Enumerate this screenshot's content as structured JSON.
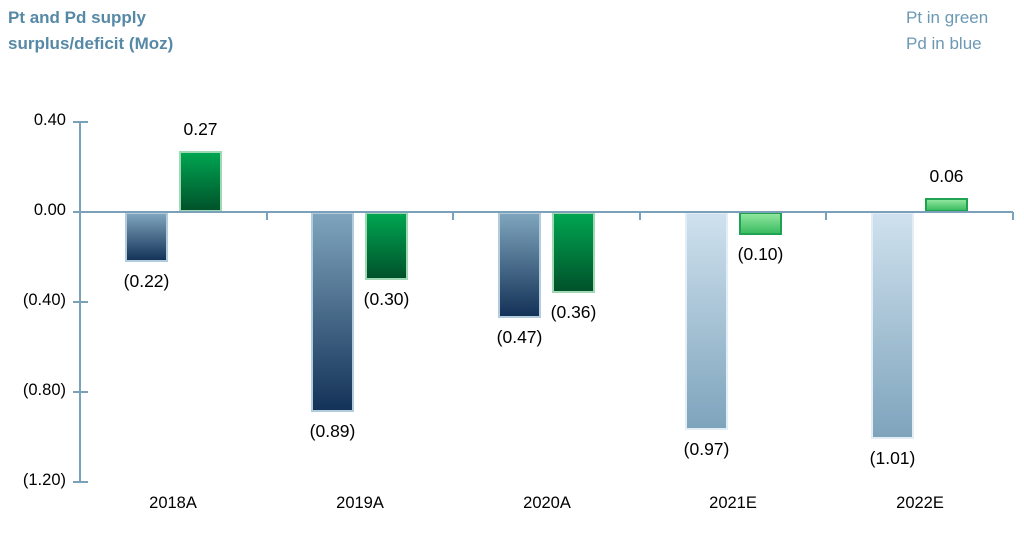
{
  "title": {
    "line1": "Pt and Pd supply",
    "line2": "surplus/deficit (Moz)"
  },
  "legend": {
    "pt": "Pt in green",
    "pd": "Pd in blue"
  },
  "colors": {
    "title_text": "#5689a6",
    "legend_text": "#6c98b4",
    "axis_line": "#7aa0ba",
    "label_text": "#000000",
    "blue_actual": {
      "top": "#7fa5bd",
      "bottom": "#143258",
      "border": "#b3ccdd"
    },
    "green_actual": {
      "top": "#00a551",
      "bottom": "#00522a",
      "border": "#9ed9b4"
    },
    "blue_forecast": {
      "top": "#cfe1ee",
      "bottom": "#7ea4bc",
      "border": "#e3edf5"
    },
    "green_forecast": {
      "top": "#90e59d",
      "bottom": "#3cbd63",
      "border": "#1fa350"
    }
  },
  "chart_data": {
    "type": "bar",
    "title": "Pt and Pd supply surplus/deficit (Moz)",
    "unit": "Moz",
    "categories": [
      "2018A",
      "2019A",
      "2020A",
      "2021E",
      "2022E"
    ],
    "forecast": [
      false,
      false,
      false,
      true,
      true
    ],
    "series": [
      {
        "name": "Pd",
        "theme": "blue",
        "values": [
          -0.22,
          -0.89,
          -0.47,
          -0.97,
          -1.01
        ],
        "labels": [
          "(0.22)",
          "(0.89)",
          "(0.47)",
          "(0.97)",
          "(1.01)"
        ]
      },
      {
        "name": "Pt",
        "theme": "green",
        "values": [
          0.27,
          -0.3,
          -0.36,
          -0.1,
          0.06
        ],
        "labels": [
          "0.27",
          "(0.30)",
          "(0.36)",
          "(0.10)",
          "0.06"
        ]
      }
    ],
    "y_axis": {
      "tick_values": [
        0.4,
        0.0,
        -0.4,
        -0.8,
        -1.2
      ],
      "tick_labels": [
        "0.40",
        "0.00",
        "(0.40)",
        "(0.80)",
        "(1.20)"
      ],
      "ylim": [
        -1.2,
        0.4
      ]
    },
    "legend_entries": [
      "Pt in green",
      "Pd in blue"
    ],
    "legend_position": "top-right",
    "grid": false,
    "negative_format": "parentheses"
  }
}
